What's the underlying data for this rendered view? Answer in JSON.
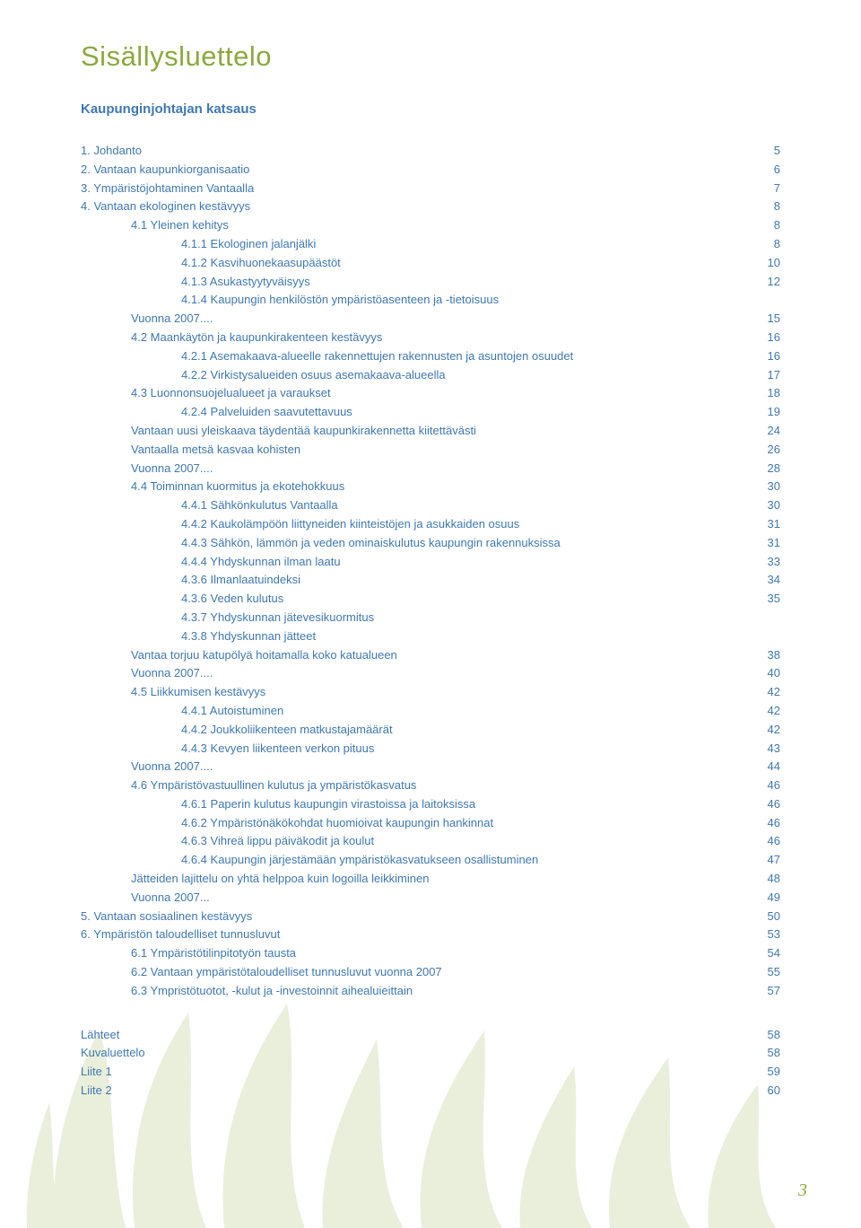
{
  "colors": {
    "title": "#8aa93e",
    "link": "#4078b0",
    "watermark": "#c0cda0",
    "background": "#ffffff"
  },
  "typography": {
    "title_fontsize": 31,
    "subtitle_fontsize": 15,
    "toc_fontsize": 13,
    "page_number_fontsize": 20
  },
  "title": "Sisällysluettelo",
  "subtitle": "Kaupunginjohtajan katsaus",
  "toc": [
    {
      "level": 0,
      "label": "1. Johdanto",
      "page": "5"
    },
    {
      "level": 0,
      "label": "2. Vantaan kaupunkiorganisaatio",
      "page": "6"
    },
    {
      "level": 0,
      "label": "3. Ympäristöjohtaminen Vantaalla",
      "page": "7"
    },
    {
      "level": 0,
      "label": "4. Vantaan ekologinen kestävyys",
      "page": "8"
    },
    {
      "level": 1,
      "label": "4.1 Yleinen kehitys",
      "page": "8"
    },
    {
      "level": 2,
      "label": "4.1.1 Ekologinen jalanjälki",
      "page": "8"
    },
    {
      "level": 2,
      "label": "4.1.2 Kasvihuonekaasupäästöt",
      "page": "10"
    },
    {
      "level": 2,
      "label": "4.1.3 Asukastyytyväisyys",
      "page": "12"
    },
    {
      "level": 2,
      "label": "4.1.4 Kaupungin henkilöstön ympäristöasenteen ja -tietoisuus",
      "page": ""
    },
    {
      "level": 1,
      "label": "Vuonna 2007....",
      "page": "15"
    },
    {
      "level": 1,
      "label": "4.2 Maankäytön ja kaupunkirakenteen kestävyys",
      "page": "16"
    },
    {
      "level": 2,
      "label": "4.2.1 Asemakaava-alueelle rakennettujen rakennusten ja asuntojen osuudet",
      "page": "16"
    },
    {
      "level": 2,
      "label": "4.2.2 Virkistysalueiden osuus asemakaava-alueella",
      "page": "17"
    },
    {
      "level": 1,
      "label": "4.3 Luonnonsuojelualueet ja varaukset",
      "page": "18"
    },
    {
      "level": 2,
      "label": "4.2.4 Palveluiden saavutettavuus",
      "page": "19"
    },
    {
      "level": 1,
      "label": "Vantaan uusi yleiskaava täydentää kaupunkirakennetta kiitettävästi",
      "page": "24"
    },
    {
      "level": 1,
      "label": "Vantaalla metsä kasvaa kohisten",
      "page": "26"
    },
    {
      "level": 1,
      "label": "Vuonna 2007....",
      "page": "28"
    },
    {
      "level": 1,
      "label": "4.4 Toiminnan kuormitus ja ekotehokkuus",
      "page": "30"
    },
    {
      "level": 2,
      "label": "4.4.1 Sähkönkulutus Vantaalla",
      "page": "30"
    },
    {
      "level": 2,
      "label": "4.4.2 Kaukolämpöön liittyneiden kiinteistöjen ja asukkaiden osuus",
      "page": "31"
    },
    {
      "level": 2,
      "label": "4.4.3 Sähkön, lämmön ja veden ominaiskulutus kaupungin rakennuksissa",
      "page": "31"
    },
    {
      "level": 2,
      "label": "4.4.4 Yhdyskunnan ilman laatu",
      "page": "33"
    },
    {
      "level": 2,
      "label": "4.3.6 Ilmanlaatuindeksi",
      "page": "34"
    },
    {
      "level": 2,
      "label": "4.3.6 Veden kulutus",
      "page": "35"
    },
    {
      "level": 2,
      "label": "4.3.7 Yhdyskunnan jätevesikuormitus",
      "page": ""
    },
    {
      "level": 2,
      "label": "4.3.8 Yhdyskunnan jätteet",
      "page": ""
    },
    {
      "level": 1,
      "label": "Vantaa torjuu katupölyä hoitamalla koko katualueen",
      "page": "38"
    },
    {
      "level": 1,
      "label": "Vuonna 2007....",
      "page": "40"
    },
    {
      "level": 1,
      "label": "4.5 Liikkumisen kestävyys",
      "page": "42"
    },
    {
      "level": 2,
      "label": "4.4.1 Autoistuminen",
      "page": "42"
    },
    {
      "level": 2,
      "label": "4.4.2 Joukkoliikenteen matkustajamäärät",
      "page": "42"
    },
    {
      "level": 2,
      "label": "4.4.3 Kevyen liikenteen verkon pituus",
      "page": "43"
    },
    {
      "level": 1,
      "label": "Vuonna 2007....",
      "page": "44"
    },
    {
      "level": 1,
      "label": "4.6 Ympäristövastuullinen kulutus ja ympäristökasvatus",
      "page": "46"
    },
    {
      "level": 2,
      "label": "4.6.1 Paperin kulutus kaupungin virastoissa ja laitoksissa",
      "page": "46"
    },
    {
      "level": 2,
      "label": "4.6.2 Ympäristönäkökohdat huomioivat kaupungin hankinnat",
      "page": "46"
    },
    {
      "level": 2,
      "label": "4.6.3 Vihreä lippu päiväkodit ja koulut",
      "page": "46"
    },
    {
      "level": 2,
      "label": "4.6.4 Kaupungin järjestämään ympäristökasvatukseen osallistuminen",
      "page": "47"
    },
    {
      "level": 1,
      "label": "Jätteiden lajittelu on yhtä helppoa kuin logoilla leikkiminen",
      "page": "48"
    },
    {
      "level": 1,
      "label": "Vuonna 2007...",
      "page": "49"
    },
    {
      "level": 0,
      "label": "5. Vantaan sosiaalinen kestävyys",
      "page": "50"
    },
    {
      "level": 0,
      "label": "6. Ympäristön taloudelliset tunnusluvut",
      "page": "53"
    },
    {
      "level": 1,
      "label": "6.1 Ympäristötilinpitotyön tausta",
      "page": "54"
    },
    {
      "level": 1,
      "label": "6.2 Vantaan ympäristötaloudelliset tunnusluvut vuonna 2007",
      "page": "55"
    },
    {
      "level": 1,
      "label": "6.3 Ympristötuotot, -kulut ja -investoinnit aihealuieittain",
      "page": "57"
    }
  ],
  "appendix": [
    {
      "level": 0,
      "label": "Lähteet",
      "page": "58"
    },
    {
      "level": 0,
      "label": "Kuvaluettelo",
      "page": "58"
    },
    {
      "level": 0,
      "label": "Liite 1",
      "page": "59"
    },
    {
      "level": 0,
      "label": "Liite 2",
      "page": "60"
    }
  ],
  "page_number": "3"
}
